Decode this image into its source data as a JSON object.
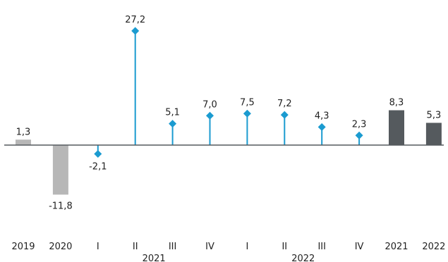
{
  "chart_data": {
    "type": "bar",
    "categories": [
      {
        "tick": "2019",
        "group": ""
      },
      {
        "tick": "2020",
        "group": ""
      },
      {
        "tick": "I",
        "group": "2021"
      },
      {
        "tick": "II",
        "group": "2021"
      },
      {
        "tick": "III",
        "group": "2021"
      },
      {
        "tick": "IV",
        "group": "2021"
      },
      {
        "tick": "I",
        "group": "2022"
      },
      {
        "tick": "II",
        "group": "2022"
      },
      {
        "tick": "III",
        "group": "2022"
      },
      {
        "tick": "IV",
        "group": "2022"
      },
      {
        "tick": "2021",
        "group": ""
      },
      {
        "tick": "2022",
        "group": ""
      }
    ],
    "group_labels": [
      "2021",
      "2022"
    ],
    "values": [
      1.3,
      -11.8,
      -2.1,
      27.2,
      5.1,
      7.0,
      7.5,
      7.2,
      4.3,
      2.3,
      8.3,
      5.3
    ],
    "value_labels": [
      "1,3",
      "-11,8",
      "-2,1",
      "27,2",
      "5,1",
      "7,0",
      "7,5",
      "7,2",
      "4,3",
      "2,3",
      "8,3",
      "5,3"
    ],
    "mark_style": [
      "bar",
      "bar",
      "lollipop",
      "lollipop",
      "lollipop",
      "lollipop",
      "lollipop",
      "lollipop",
      "lollipop",
      "lollipop",
      "bar",
      "bar"
    ],
    "colors": {
      "history": "#b7b7b7",
      "quarterly": "#1b9bd0",
      "forecast": "#555a5e",
      "baseline": "#555a5e"
    },
    "color_keys": [
      "history",
      "history",
      "quarterly",
      "quarterly",
      "quarterly",
      "quarterly",
      "quarterly",
      "quarterly",
      "quarterly",
      "quarterly",
      "forecast",
      "forecast"
    ],
    "title": "",
    "xlabel": "",
    "ylabel": "",
    "grid": false,
    "legend": "none"
  }
}
